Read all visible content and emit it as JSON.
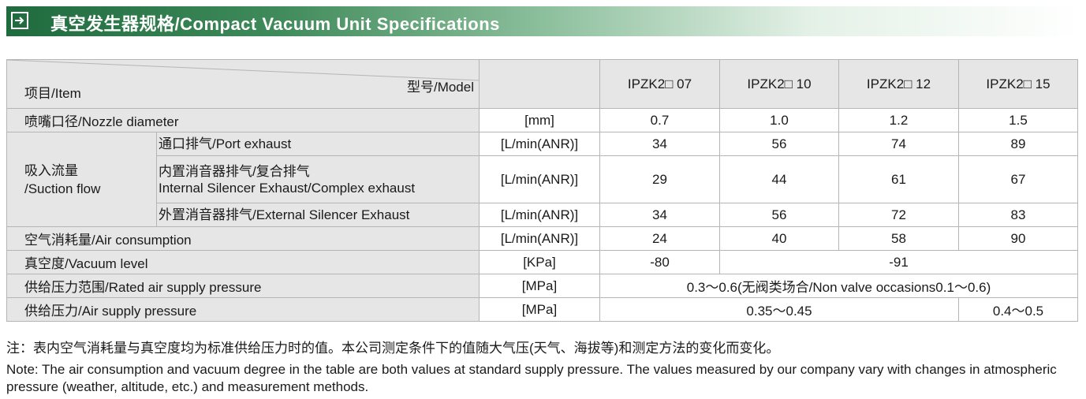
{
  "header": {
    "title": "真空发生器规格/Compact Vacuum Unit Specifications"
  },
  "table": {
    "corner_item": "项目/Item",
    "corner_model": "型号/Model",
    "models": [
      "IPZK2□ 07",
      "IPZK2□ 10",
      "IPZK2□ 12",
      "IPZK2□ 15"
    ],
    "nozzle": {
      "label": "喷嘴口径/Nozzle diameter",
      "unit": "[mm]",
      "values": [
        "0.7",
        "1.0",
        "1.2",
        "1.5"
      ]
    },
    "suction_flow": {
      "label": [
        "吸入流量",
        "/Suction flow"
      ],
      "rows": [
        {
          "label": [
            "通口排气/Port exhaust"
          ],
          "unit": "[L/min(ANR)]",
          "values": [
            "34",
            "56",
            "74",
            "89"
          ]
        },
        {
          "label": [
            "内置消音器排气/复合排气",
            "Internal Silencer Exhaust/Complex exhaust"
          ],
          "unit": "[L/min(ANR)]",
          "values": [
            "29",
            "44",
            "61",
            "67"
          ]
        },
        {
          "label": [
            "外置消音器排气/External Silencer Exhaust"
          ],
          "unit": "[L/min(ANR)]",
          "values": [
            "34",
            "56",
            "72",
            "83"
          ]
        }
      ]
    },
    "air_consumption": {
      "label": "空气消耗量/Air consumption",
      "unit": "[L/min(ANR)]",
      "values": [
        "24",
        "40",
        "58",
        "90"
      ]
    },
    "vacuum_level": {
      "label": "真空度/Vacuum level",
      "unit": "[KPa]",
      "values": [
        "-80",
        "-91"
      ]
    },
    "rated_pressure": {
      "label": "供给压力范围/Rated air supply pressure",
      "unit": "[MPa]",
      "value": "0.3～0.6(无阀类场合/Non valve occasions0.1～0.6)"
    },
    "supply_pressure": {
      "label": "供给压力/Air supply pressure",
      "unit": "[MPa]",
      "values": [
        "0.35～0.45",
        "0.4～0.5"
      ]
    }
  },
  "notes": {
    "zh": "注：表内空气消耗量与真空度均为标准供给压力时的值。本公司测定条件下的值随大气压(天气、海拔等)和测定方法的变化而变化。",
    "en": "Note: The air consumption and vacuum degree in the table are both values at standard supply pressure. The values measured by our company vary with changes in atmospheric pressure (weather, altitude, etc.) and measurement methods."
  }
}
